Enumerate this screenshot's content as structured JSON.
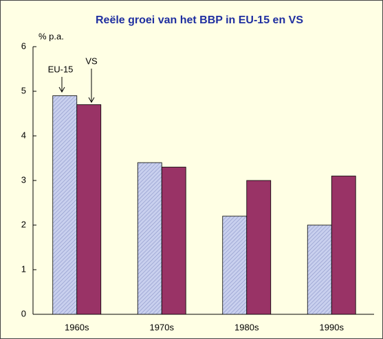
{
  "chart_data": {
    "type": "bar",
    "title": "Reële groei van het BBP in EU-15 en VS",
    "y_label": "% p.a.",
    "categories": [
      "1960s",
      "1970s",
      "1980s",
      "1990s"
    ],
    "series": [
      {
        "name": "EU-15",
        "color": "#c9d0ee",
        "values": [
          4.9,
          3.4,
          2.2,
          2.0
        ]
      },
      {
        "name": "VS",
        "color": "#993366",
        "values": [
          4.7,
          3.3,
          3.0,
          3.1
        ]
      }
    ],
    "ylim": [
      0,
      6
    ],
    "yticks": [
      0,
      1,
      2,
      3,
      4,
      5,
      6
    ]
  }
}
